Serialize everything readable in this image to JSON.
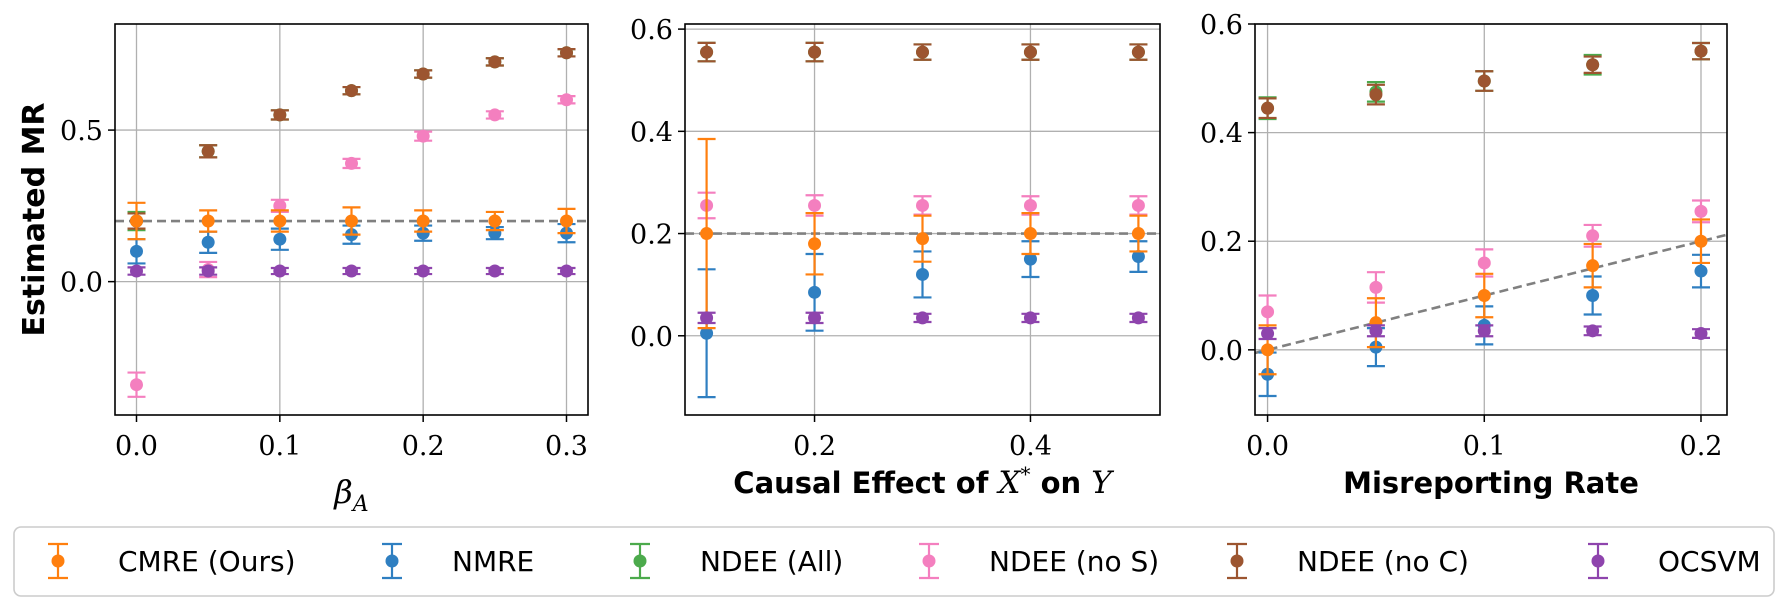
{
  "chart_data": [
    {
      "type": "scatter",
      "xlabel": "β_A",
      "ylabel": "Estimated MR",
      "xlim": [
        -0.015,
        0.315
      ],
      "ylim": [
        -0.44,
        0.85
      ],
      "xticks": [
        0.0,
        0.1,
        0.2,
        0.3
      ],
      "xtick_labels": [
        "0.0",
        "0.1",
        "0.2",
        "0.3"
      ],
      "yticks": [
        0.0,
        0.5
      ],
      "ytick_labels": [
        "0.0",
        "0.5"
      ],
      "grid": true,
      "reference_line": {
        "style": "dashed",
        "points": [
          [
            -0.015,
            0.2
          ],
          [
            0.315,
            0.2
          ]
        ]
      },
      "x": [
        0.0,
        0.05,
        0.1,
        0.15,
        0.2,
        0.25,
        0.3
      ],
      "series": [
        {
          "name": "CMRE (Ours)",
          "values": [
            0.2,
            0.2,
            0.2,
            0.2,
            0.2,
            0.2,
            0.2
          ],
          "errors": [
            0.06,
            0.035,
            0.035,
            0.045,
            0.035,
            0.03,
            0.04
          ]
        },
        {
          "name": "NMRE",
          "values": [
            0.1,
            0.13,
            0.14,
            0.155,
            0.16,
            0.16,
            0.16
          ],
          "errors": [
            0.04,
            0.035,
            0.035,
            0.03,
            0.025,
            0.02,
            0.03
          ]
        },
        {
          "name": "NDEE (All)",
          "values": [
            0.2,
            0.43,
            0.55,
            0.63,
            0.685,
            0.725,
            0.755
          ],
          "errors": [
            0.03,
            0.02,
            0.015,
            0.012,
            0.012,
            0.012,
            0.012
          ]
        },
        {
          "name": "NDEE (no S)",
          "values": [
            -0.34,
            0.04,
            0.25,
            0.39,
            0.48,
            0.55,
            0.6
          ],
          "errors": [
            0.04,
            0.025,
            0.02,
            0.015,
            0.015,
            0.012,
            0.012
          ]
        },
        {
          "name": "NDEE (no C)",
          "values": [
            0.2,
            0.43,
            0.55,
            0.63,
            0.685,
            0.725,
            0.755
          ],
          "errors": [
            0.025,
            0.02,
            0.015,
            0.012,
            0.012,
            0.012,
            0.012
          ]
        },
        {
          "name": "OCSVM",
          "values": [
            0.035,
            0.035,
            0.035,
            0.035,
            0.035,
            0.035,
            0.035
          ],
          "errors": [
            0.012,
            0.012,
            0.01,
            0.01,
            0.01,
            0.01,
            0.01
          ]
        }
      ]
    },
    {
      "type": "scatter",
      "xlabel": "Causal Effect of X* on Y",
      "ylabel": "",
      "xlim": [
        0.08,
        0.52
      ],
      "ylim": [
        -0.155,
        0.61
      ],
      "xticks": [
        0.2,
        0.4
      ],
      "xtick_labels": [
        "0.2",
        "0.4"
      ],
      "yticks": [
        0.0,
        0.2,
        0.4,
        0.6
      ],
      "ytick_labels": [
        "0.0",
        "0.2",
        "0.4",
        "0.6"
      ],
      "grid": true,
      "reference_line": {
        "style": "dashed",
        "points": [
          [
            0.08,
            0.2
          ],
          [
            0.52,
            0.2
          ]
        ]
      },
      "x": [
        0.1,
        0.2,
        0.3,
        0.4,
        0.5
      ],
      "series": [
        {
          "name": "CMRE (Ours)",
          "values": [
            0.2,
            0.18,
            0.19,
            0.2,
            0.2
          ],
          "errors": [
            0.185,
            0.06,
            0.045,
            0.04,
            0.035
          ]
        },
        {
          "name": "NMRE",
          "values": [
            0.005,
            0.085,
            0.12,
            0.15,
            0.155
          ],
          "errors": [
            0.125,
            0.075,
            0.045,
            0.035,
            0.03
          ]
        },
        {
          "name": "NDEE (All)",
          "values": [
            0.555,
            0.555,
            0.555,
            0.555,
            0.555
          ],
          "errors": [
            0.018,
            0.018,
            0.015,
            0.015,
            0.015
          ]
        },
        {
          "name": "NDEE (no S)",
          "values": [
            0.255,
            0.255,
            0.255,
            0.255,
            0.255
          ],
          "errors": [
            0.025,
            0.02,
            0.018,
            0.018,
            0.018
          ]
        },
        {
          "name": "NDEE (no C)",
          "values": [
            0.555,
            0.555,
            0.555,
            0.555,
            0.555
          ],
          "errors": [
            0.018,
            0.018,
            0.015,
            0.015,
            0.015
          ]
        },
        {
          "name": "OCSVM",
          "values": [
            0.035,
            0.035,
            0.035,
            0.035,
            0.035
          ],
          "errors": [
            0.01,
            0.01,
            0.008,
            0.008,
            0.008
          ]
        }
      ]
    },
    {
      "type": "scatter",
      "xlabel": "Misreporting Rate",
      "ylabel": "",
      "xlim": [
        -0.0058,
        0.212
      ],
      "ylim": [
        -0.12,
        0.6
      ],
      "xticks": [
        0.0,
        0.1,
        0.2
      ],
      "xtick_labels": [
        "0.0",
        "0.1",
        "0.2"
      ],
      "yticks": [
        0.0,
        0.2,
        0.4,
        0.6
      ],
      "ytick_labels": [
        "0.0",
        "0.2",
        "0.4",
        "0.6"
      ],
      "grid": true,
      "reference_line": {
        "style": "dashed",
        "points": [
          [
            -0.0058,
            -0.0058
          ],
          [
            0.212,
            0.212
          ]
        ]
      },
      "x": [
        0.0,
        0.05,
        0.1,
        0.15,
        0.2
      ],
      "series": [
        {
          "name": "CMRE (Ours)",
          "values": [
            0.0,
            0.05,
            0.1,
            0.155,
            0.2
          ],
          "errors": [
            0.045,
            0.045,
            0.04,
            0.04,
            0.04
          ]
        },
        {
          "name": "NMRE",
          "values": [
            -0.045,
            0.005,
            0.045,
            0.1,
            0.145
          ],
          "errors": [
            0.04,
            0.035,
            0.035,
            0.035,
            0.03
          ]
        },
        {
          "name": "NDEE (All)",
          "values": [
            0.445,
            0.475,
            0.495,
            0.525,
            0.55
          ],
          "errors": [
            0.02,
            0.018,
            0.018,
            0.018,
            0.015
          ]
        },
        {
          "name": "NDEE (no S)",
          "values": [
            0.07,
            0.115,
            0.16,
            0.21,
            0.255
          ],
          "errors": [
            0.03,
            0.028,
            0.025,
            0.02,
            0.02
          ]
        },
        {
          "name": "NDEE (no C)",
          "values": [
            0.445,
            0.47,
            0.495,
            0.525,
            0.55
          ],
          "errors": [
            0.018,
            0.018,
            0.018,
            0.015,
            0.015
          ]
        },
        {
          "name": "OCSVM",
          "values": [
            0.03,
            0.035,
            0.035,
            0.035,
            0.03
          ],
          "errors": [
            0.01,
            0.01,
            0.01,
            0.008,
            0.008
          ]
        }
      ]
    }
  ],
  "colors": {
    "CMRE (Ours)": "#ff7f0e",
    "NMRE": "#2f7fc1",
    "NDEE (All)": "#4caa4c",
    "NDEE (no S)": "#f47fbf",
    "NDEE (no C)": "#9c5530",
    "OCSVM": "#8e44ad",
    "grid": "#b0b0b0",
    "reference": "#808080",
    "axes": "#000000"
  },
  "legend": {
    "placement": "bottom",
    "items": [
      "CMRE (Ours)",
      "NMRE",
      "NDEE (All)",
      "NDEE (no S)",
      "NDEE (no C)",
      "OCSVM"
    ]
  }
}
